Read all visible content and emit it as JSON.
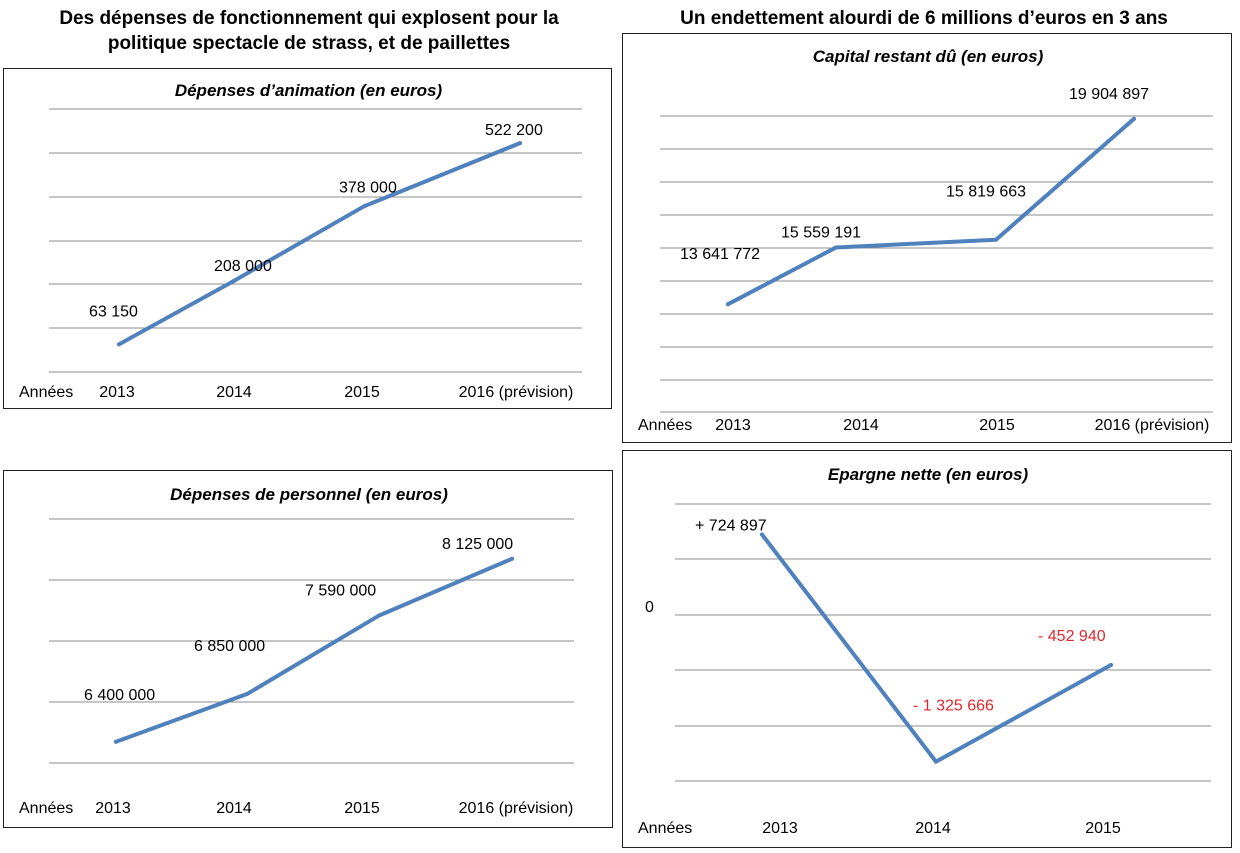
{
  "headings": {
    "left": [
      "Des dépenses de fonctionnement qui explosent pour la",
      "politique spectacle de strass, et de paillettes"
    ],
    "right": "Un endettement alourdi de 6 millions d’euros en 3 ans"
  },
  "style": {
    "line_color": "#4f81bd",
    "grid_color": "#8c8c8c",
    "negative_color": "#e3262c"
  },
  "chart_data": [
    {
      "id": "animation",
      "type": "line",
      "title": "Dépenses d’animation (en euros)",
      "xlabel": "Années",
      "categories": [
        "2013",
        "2014",
        "2015",
        "2016 (prévision)"
      ],
      "values": [
        63150,
        208000,
        378000,
        522200
      ],
      "labels": [
        "63 150",
        "208 000",
        "378 000",
        "522 200"
      ],
      "ylim": [
        0,
        600000
      ],
      "grid": true
    },
    {
      "id": "capital",
      "type": "line",
      "title": "Capital restant dû (en euros)",
      "xlabel": "Années",
      "categories": [
        "2013",
        "2014",
        "2015",
        "2016 (prévision)"
      ],
      "values": [
        13641772,
        15559191,
        15819663,
        19904897
      ],
      "labels": [
        "13 641 772",
        "15 559 191",
        "15 819 663",
        "19 904 897"
      ],
      "ylim": [
        10000000,
        20000000
      ],
      "grid": true
    },
    {
      "id": "personnel",
      "type": "line",
      "title": "Dépenses de personnel (en euros)",
      "xlabel": "Années",
      "categories": [
        "2013",
        "2014",
        "2015",
        "2016 (prévision)"
      ],
      "values": [
        6400000,
        6850000,
        7590000,
        8125000
      ],
      "labels": [
        "6 400 000",
        "6 850 000",
        "7 590 000",
        "8 125 000"
      ],
      "ylim": [
        6200000,
        8500000
      ],
      "grid": true
    },
    {
      "id": "epargne",
      "type": "line",
      "title": "Epargne nette (en euros)",
      "xlabel": "Années",
      "zero_label": "0",
      "categories": [
        "2013",
        "2014",
        "2015"
      ],
      "values": [
        724897,
        -1325666,
        -452940
      ],
      "labels": [
        "+ 724 897",
        "- 1 325 666",
        "- 452 940"
      ],
      "ylim": [
        -1500000,
        1000000
      ],
      "grid": true
    }
  ]
}
